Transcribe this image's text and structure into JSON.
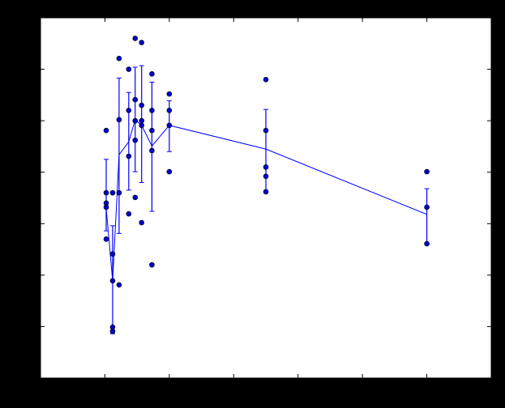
{
  "chart_data": {
    "type": "scatter",
    "title": "",
    "xlabel": "",
    "ylabel": "",
    "xlim": [
      0,
      7
    ],
    "ylim": [
      0,
      7
    ],
    "xticks": [
      1,
      2,
      3,
      4,
      5,
      6
    ],
    "yticks": [
      1,
      2,
      3,
      4,
      5,
      6
    ],
    "tick_labels_visible": false,
    "grid": false,
    "legend": "none",
    "colors": {
      "figure_background": "#000000",
      "axes_background": "#ffffff",
      "points": "#0000cc",
      "line": "#0000ff"
    },
    "points": [
      {
        "x": 1.02,
        "y": [
          4.81,
          3.6,
          3.4,
          3.32,
          2.7
        ]
      },
      {
        "x": 1.12,
        "y": [
          3.6,
          2.41,
          1.89,
          0.99,
          0.91
        ]
      },
      {
        "x": 1.22,
        "y": [
          6.21,
          5.02,
          3.6,
          1.81
        ]
      },
      {
        "x": 1.37,
        "y": [
          6.0,
          5.2,
          4.31,
          3.19
        ]
      },
      {
        "x": 1.47,
        "y": [
          6.6,
          5.41,
          5.0,
          4.62,
          3.51
        ]
      },
      {
        "x": 1.57,
        "y": [
          6.52,
          5.3,
          5.0,
          4.91,
          3.02
        ]
      },
      {
        "x": 1.73,
        "y": [
          5.91,
          5.2,
          4.81,
          4.42,
          2.2
        ]
      },
      {
        "x": 2.0,
        "y": [
          5.52,
          5.2,
          4.91,
          4.01
        ]
      },
      {
        "x": 3.5,
        "y": [
          5.8,
          4.81,
          4.1,
          3.92,
          3.62
        ]
      },
      {
        "x": 6.0,
        "y": [
          4.01,
          3.32,
          2.61
        ]
      }
    ],
    "line_with_errorbars": [
      {
        "x": 1.02,
        "y": 3.3,
        "upper": 4.25,
        "lower": 2.86
      },
      {
        "x": 1.12,
        "y": 1.89,
        "upper": 2.96,
        "lower": 0.86
      },
      {
        "x": 1.22,
        "y": 4.34,
        "upper": 5.83,
        "lower": 2.81
      },
      {
        "x": 1.37,
        "y": 4.59,
        "upper": 5.55,
        "lower": 3.65
      },
      {
        "x": 1.47,
        "y": 5.02,
        "upper": 6.04,
        "lower": 4.01
      },
      {
        "x": 1.57,
        "y": 4.91,
        "upper": 6.07,
        "lower": 3.8
      },
      {
        "x": 1.73,
        "y": 4.51,
        "upper": 5.75,
        "lower": 3.24
      },
      {
        "x": 2.0,
        "y": 4.91,
        "upper": 5.39,
        "lower": 4.4
      },
      {
        "x": 3.5,
        "y": 4.45,
        "upper": 5.22,
        "lower": 3.62
      },
      {
        "x": 6.0,
        "y": 3.18,
        "upper": 3.68,
        "lower": 2.61
      }
    ]
  }
}
